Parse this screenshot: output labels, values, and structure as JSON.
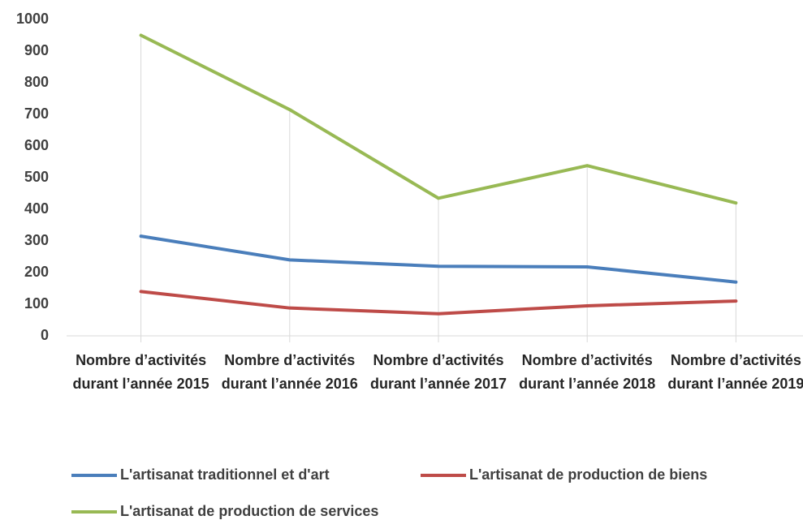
{
  "chart_data": {
    "type": "line",
    "categories": [
      "Nombre d’activités durant l’année 2015",
      "Nombre d’activités durant l’année 2016",
      "Nombre d’activités durant l’année 2017",
      "Nombre d’activités durant l’année 2018",
      "Nombre d’activités durant l’année 2019"
    ],
    "series": [
      {
        "name": "L'artisanat traditionnel et d'art",
        "color": "#4a7ebb",
        "values": [
          315,
          240,
          220,
          218,
          170
        ]
      },
      {
        "name": "L'artisanat de production de biens",
        "color": "#be4b48",
        "values": [
          140,
          88,
          70,
          95,
          110
        ]
      },
      {
        "name": "L'artisanat de production de services",
        "color": "#98b954",
        "values": [
          950,
          715,
          435,
          538,
          420
        ]
      }
    ],
    "ylim": [
      0,
      1000
    ],
    "yticks": [
      0,
      100,
      200,
      300,
      400,
      500,
      600,
      700,
      800,
      900,
      1000
    ],
    "droplines": true,
    "legend": "bottom"
  }
}
